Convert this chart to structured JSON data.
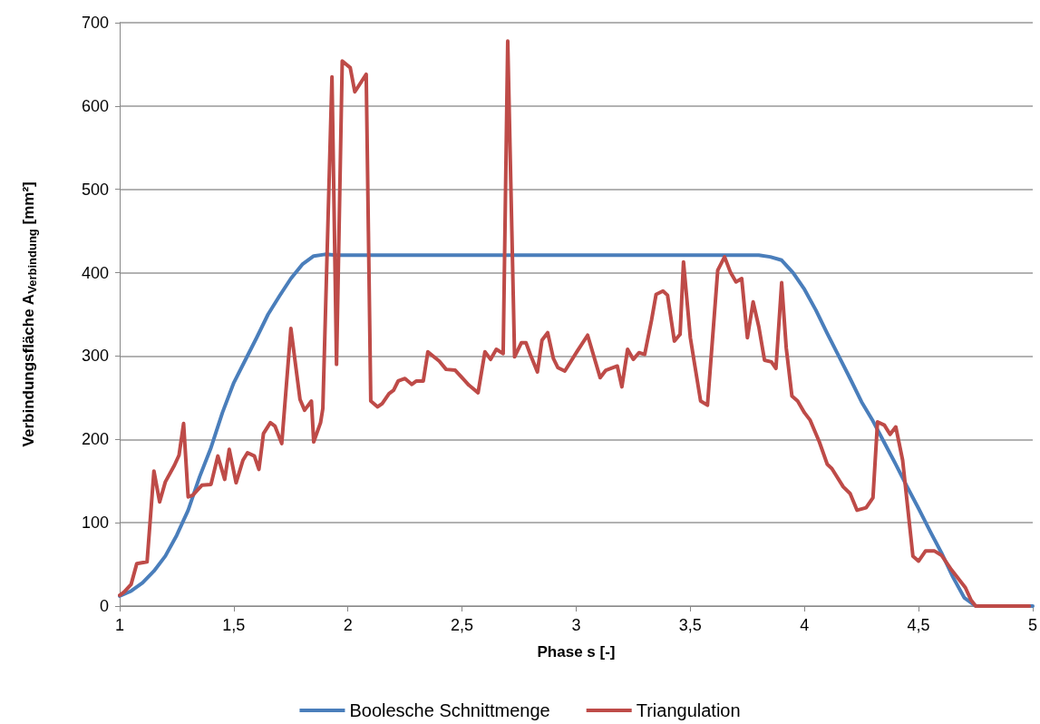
{
  "chart_data": {
    "type": "line",
    "xlabel": "Phase s [-]",
    "ylabel": "Verbindungsfläche A$_{Verbindung}$ [mm²]",
    "xlim": [
      1,
      5
    ],
    "xticks": [
      1,
      {
        "value": 1.5,
        "label": "1,5"
      },
      2,
      {
        "value": 2.5,
        "label": "2,5"
      },
      3,
      {
        "value": 3.5,
        "label": "3,5"
      },
      4,
      {
        "value": 4.5,
        "label": "4,5"
      },
      5
    ],
    "ylim": [
      0,
      700
    ],
    "yticks": [
      0,
      100,
      200,
      300,
      400,
      500,
      600,
      700
    ],
    "grid": "y",
    "legend": "bottom",
    "marker": "none",
    "line_style": "solid",
    "series": [
      {
        "name": "Boolesche Schnittmenge",
        "color": "#4a7ebb",
        "x": [
          1,
          1.05,
          1.1,
          1.15,
          1.2,
          1.25,
          1.3,
          1.35,
          1.4,
          1.45,
          1.5,
          1.55,
          1.6,
          1.65,
          1.7,
          1.75,
          1.8,
          1.85,
          1.9,
          1.95,
          2,
          3.8,
          3.85,
          3.9,
          3.95,
          4,
          4.05,
          4.1,
          4.15,
          4.2,
          4.25,
          4.3,
          4.35,
          4.4,
          4.45,
          4.5,
          4.55,
          4.6,
          4.65,
          4.7,
          4.75,
          5
        ],
        "values": [
          12,
          18,
          28,
          42,
          60,
          85,
          115,
          155,
          190,
          232,
          268,
          295,
          322,
          350,
          372,
          393,
          410,
          420,
          422,
          421,
          421,
          421,
          419,
          415,
          400,
          380,
          355,
          327,
          300,
          273,
          245,
          222,
          196,
          170,
          143,
          117,
          90,
          64,
          35,
          10,
          0,
          0
        ]
      },
      {
        "name": "Triangulation",
        "color": "#be4b48",
        "x": [
          1,
          1.02,
          1.05,
          1.075,
          1.12,
          1.15,
          1.175,
          1.2,
          1.24,
          1.26,
          1.28,
          1.3,
          1.32,
          1.36,
          1.4,
          1.43,
          1.46,
          1.48,
          1.51,
          1.54,
          1.56,
          1.59,
          1.61,
          1.63,
          1.66,
          1.68,
          1.71,
          1.75,
          1.79,
          1.81,
          1.84,
          1.85,
          1.88,
          1.89,
          1.93,
          1.95,
          1.975,
          2.01,
          2.03,
          2.08,
          2.1,
          2.13,
          2.15,
          2.18,
          2.2,
          2.22,
          2.25,
          2.28,
          2.3,
          2.33,
          2.35,
          2.4,
          2.43,
          2.47,
          2.53,
          2.57,
          2.6,
          2.625,
          2.65,
          2.68,
          2.7,
          2.73,
          2.76,
          2.78,
          2.8,
          2.83,
          2.85,
          2.875,
          2.9,
          2.92,
          2.95,
          3.005,
          3.05,
          3.105,
          3.13,
          3.18,
          3.2,
          3.225,
          3.25,
          3.275,
          3.3,
          3.33,
          3.35,
          3.38,
          3.4,
          3.43,
          3.455,
          3.47,
          3.5,
          3.52,
          3.545,
          3.575,
          3.62,
          3.65,
          3.675,
          3.7,
          3.725,
          3.75,
          3.775,
          3.8,
          3.825,
          3.855,
          3.875,
          3.9,
          3.92,
          3.945,
          3.97,
          4,
          4.025,
          4.065,
          4.1,
          4.12,
          4.17,
          4.2,
          4.23,
          4.27,
          4.3,
          4.32,
          4.35,
          4.375,
          4.4,
          4.43,
          4.475,
          4.5,
          4.53,
          4.57,
          4.6,
          4.64,
          4.705,
          4.73,
          4.75,
          4.985
        ],
        "values": [
          13,
          17,
          26,
          51,
          53,
          162,
          125,
          149,
          169,
          181,
          219,
          131,
          133,
          145,
          146,
          180,
          152,
          188,
          148,
          175,
          184,
          180,
          164,
          207,
          220,
          216,
          195,
          333,
          248,
          235,
          246,
          197,
          220,
          237,
          635,
          290,
          654,
          646,
          617,
          638,
          246,
          239,
          243,
          255,
          259,
          270,
          273,
          266,
          270,
          270,
          305,
          294,
          284,
          283,
          265,
          256,
          305,
          296,
          308,
          303,
          678,
          299,
          316,
          316,
          301,
          281,
          319,
          328,
          297,
          286,
          282,
          306,
          325,
          274,
          283,
          288,
          263,
          308,
          296,
          304,
          302,
          343,
          374,
          378,
          373,
          318,
          326,
          413,
          322,
          288,
          246,
          241,
          403,
          419,
          401,
          389,
          393,
          322,
          365,
          335,
          295,
          293,
          285,
          388,
          310,
          252,
          246,
          232,
          223,
          197,
          170,
          165,
          143,
          135,
          115,
          118,
          130,
          221,
          217,
          206,
          215,
          175,
          60,
          54,
          66,
          66,
          61,
          45,
          22,
          7,
          0,
          0
        ]
      }
    ]
  }
}
